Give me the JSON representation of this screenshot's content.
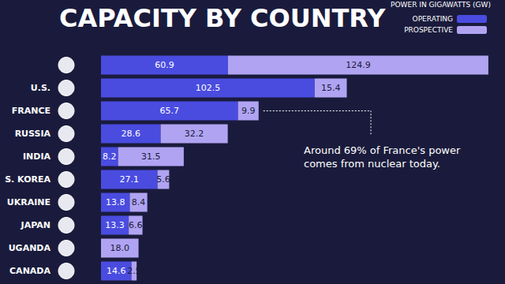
{
  "chart_data": {
    "type": "bar",
    "title": "CAPACITY BY COUNTRY",
    "subtitle": "POWER IN GIGAWATTS (GW)",
    "orientation": "horizontal",
    "stacked": true,
    "data_labels": true,
    "tick_labels": "y",
    "grid": false,
    "legend": "top-right",
    "categories": [
      null,
      "U.S.",
      "FRANCE",
      "RUSSIA",
      "INDIA",
      "S. KOREA",
      "UKRAINE",
      "JAPAN",
      "UGANDA",
      "CANADA"
    ],
    "xlim": [
      0,
      190
    ],
    "series": [
      {
        "name": "OPERATING",
        "color": "#4a4ce0",
        "values": [
          60.9,
          102.5,
          65.7,
          28.6,
          8.2,
          27.1,
          13.8,
          13.3,
          null,
          14.6
        ],
        "value_labels": [
          "60.9",
          "102.5",
          "65.7",
          "28.6",
          "8.2",
          "27.1",
          "13.8",
          "13.3",
          null,
          "14.6"
        ]
      },
      {
        "name": "PROSPECTIVE",
        "color": "#b0a4f2",
        "values": [
          124.9,
          15.4,
          9.9,
          32.2,
          31.5,
          5.6,
          8.4,
          6.6,
          18.0,
          2.5
        ],
        "value_labels": [
          "124.9",
          "15.4",
          "9.9",
          "32.2",
          "31.5",
          "5.6",
          "8.4",
          "6.6",
          "18.0",
          "2.5"
        ]
      }
    ],
    "annotation": "Around 69% of France's power comes from nuclear today."
  }
}
